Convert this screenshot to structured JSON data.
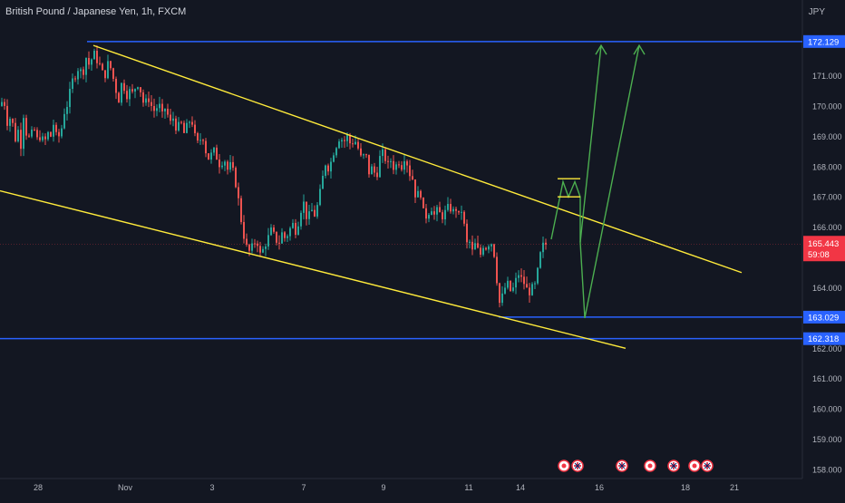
{
  "header": {
    "symbol_title": "British Pound / Japanese Yen, 1h, FXCM",
    "currency": "JPY"
  },
  "colors": {
    "background": "#131722",
    "up_candle": "#26a69a",
    "down_candle": "#ef5350",
    "horizontal_level": "#2962ff",
    "channel_line": "#ffeb3b",
    "projection_arrow": "#4caf50",
    "current_price_badge": "#f23645",
    "axis_text": "#b2b5be"
  },
  "icons": [
    "event-dot-icon",
    "uk-flag-icon"
  ],
  "chart_data": {
    "type": "candlestick",
    "y_axis": {
      "ylim": [
        157.7,
        173.5
      ],
      "tick_labels": [
        "158.000",
        "159.000",
        "160.000",
        "161.000",
        "162.000",
        "163.000",
        "164.000",
        "165.000",
        "166.000",
        "167.000",
        "168.000",
        "169.000",
        "170.000",
        "171.000"
      ]
    },
    "x_axis": {
      "tick_labels": [
        "28",
        "Nov",
        "3",
        "7",
        "9",
        "11",
        "14",
        "16",
        "18",
        "21"
      ]
    },
    "price_labels": [
      {
        "value": "172.129",
        "style": "level"
      },
      {
        "value": "163.029",
        "style": "level"
      },
      {
        "value": "162.318",
        "style": "level"
      },
      {
        "value": "165.443",
        "style": "current",
        "countdown": "59:08"
      }
    ],
    "horizontal_levels": [
      172.129,
      163.029,
      162.318
    ],
    "current_price": 165.443,
    "candle_path": [
      [
        0,
        170.0
      ],
      [
        3,
        170.4
      ],
      [
        6,
        169.4
      ],
      [
        10,
        169.6
      ],
      [
        12,
        169.2
      ],
      [
        14,
        169.6
      ],
      [
        16,
        168.9
      ],
      [
        20,
        169.3
      ],
      [
        22,
        168.7
      ],
      [
        25,
        169.7
      ],
      [
        28,
        169.1
      ],
      [
        32,
        168.9
      ],
      [
        36,
        169.3
      ],
      [
        40,
        168.9
      ],
      [
        44,
        169.0
      ],
      [
        48,
        168.8
      ],
      [
        52,
        169.1
      ],
      [
        55,
        169.0
      ],
      [
        58,
        169.4
      ],
      [
        62,
        168.9
      ],
      [
        66,
        169.1
      ],
      [
        70,
        169.8
      ],
      [
        74,
        170.1
      ],
      [
        78,
        170.8
      ],
      [
        82,
        171.0
      ],
      [
        86,
        171.3
      ],
      [
        90,
        171.0
      ],
      [
        94,
        171.6
      ],
      [
        98,
        171.3
      ],
      [
        102,
        171.8
      ],
      [
        106,
        171.5
      ],
      [
        110,
        171.3
      ],
      [
        114,
        170.9
      ],
      [
        118,
        171.4
      ],
      [
        122,
        171.2
      ],
      [
        126,
        170.6
      ],
      [
        130,
        170.2
      ],
      [
        134,
        170.9
      ],
      [
        138,
        170.3
      ],
      [
        142,
        170.5
      ],
      [
        146,
        170.4
      ],
      [
        150,
        170.8
      ],
      [
        154,
        170.5
      ],
      [
        158,
        170.0
      ],
      [
        162,
        170.3
      ],
      [
        166,
        170.0
      ],
      [
        170,
        169.8
      ],
      [
        174,
        170.1
      ],
      [
        178,
        169.7
      ],
      [
        182,
        170.0
      ],
      [
        186,
        169.4
      ],
      [
        190,
        169.6
      ],
      [
        194,
        169.2
      ],
      [
        198,
        169.5
      ],
      [
        202,
        169.1
      ],
      [
        206,
        169.4
      ],
      [
        210,
        169.6
      ],
      [
        214,
        169.0
      ],
      [
        218,
        168.7
      ],
      [
        222,
        169.1
      ],
      [
        226,
        168.5
      ],
      [
        230,
        168.2
      ],
      [
        234,
        168.6
      ],
      [
        238,
        168.3
      ],
      [
        242,
        168.0
      ],
      [
        246,
        168.3
      ],
      [
        250,
        167.9
      ],
      [
        254,
        168.1
      ],
      [
        258,
        167.6
      ],
      [
        262,
        166.9
      ],
      [
        266,
        166.0
      ],
      [
        270,
        165.4
      ],
      [
        274,
        165.2
      ],
      [
        278,
        165.4
      ],
      [
        282,
        165.6
      ],
      [
        286,
        165.1
      ],
      [
        290,
        165.3
      ],
      [
        294,
        165.6
      ],
      [
        298,
        165.9
      ],
      [
        302,
        165.7
      ],
      [
        306,
        165.4
      ],
      [
        310,
        165.8
      ],
      [
        314,
        165.6
      ],
      [
        318,
        165.9
      ],
      [
        322,
        166.1
      ],
      [
        326,
        165.8
      ],
      [
        330,
        166.5
      ],
      [
        334,
        166.8
      ],
      [
        338,
        166.2
      ],
      [
        342,
        166.6
      ],
      [
        346,
        166.4
      ],
      [
        350,
        166.8
      ],
      [
        354,
        167.5
      ],
      [
        358,
        168.1
      ],
      [
        362,
        167.9
      ],
      [
        366,
        168.4
      ],
      [
        370,
        168.7
      ],
      [
        374,
        169.0
      ],
      [
        378,
        168.8
      ],
      [
        382,
        169.0
      ],
      [
        386,
        168.7
      ],
      [
        390,
        168.9
      ],
      [
        394,
        168.6
      ],
      [
        398,
        168.2
      ],
      [
        402,
        168.5
      ],
      [
        406,
        167.8
      ],
      [
        410,
        168.0
      ],
      [
        414,
        167.6
      ],
      [
        418,
        168.3
      ],
      [
        422,
        168.5
      ],
      [
        426,
        168.0
      ],
      [
        430,
        168.2
      ],
      [
        434,
        167.9
      ],
      [
        438,
        168.2
      ],
      [
        442,
        168.0
      ],
      [
        446,
        168.4
      ],
      [
        450,
        167.8
      ],
      [
        454,
        167.6
      ],
      [
        458,
        166.9
      ],
      [
        462,
        167.3
      ],
      [
        466,
        166.5
      ],
      [
        470,
        166.3
      ],
      [
        474,
        166.7
      ],
      [
        478,
        166.4
      ],
      [
        482,
        166.6
      ],
      [
        486,
        166.3
      ],
      [
        490,
        166.5
      ],
      [
        494,
        166.7
      ],
      [
        498,
        166.5
      ],
      [
        502,
        166.6
      ],
      [
        506,
        166.3
      ],
      [
        510,
        166.8
      ],
      [
        512,
        165.3
      ],
      [
        516,
        165.6
      ],
      [
        520,
        165.2
      ],
      [
        524,
        165.5
      ],
      [
        528,
        165.0
      ],
      [
        532,
        165.4
      ],
      [
        536,
        165.3
      ],
      [
        540,
        165.6
      ],
      [
        544,
        165.1
      ],
      [
        546,
        164.5
      ],
      [
        550,
        163.5
      ],
      [
        554,
        163.8
      ],
      [
        558,
        164.2
      ],
      [
        562,
        163.9
      ],
      [
        566,
        164.0
      ],
      [
        570,
        164.5
      ],
      [
        574,
        164.3
      ],
      [
        578,
        164.1
      ],
      [
        582,
        163.8
      ],
      [
        586,
        164.0
      ],
      [
        590,
        164.1
      ],
      [
        594,
        165.0
      ],
      [
        598,
        165.4
      ],
      [
        602,
        165.443
      ]
    ],
    "trendlines": [
      {
        "name": "upper-channel",
        "x1": 103,
        "p1": 172.0,
        "x2": 818,
        "p2": 164.5
      },
      {
        "name": "lower-channel",
        "x1": 0,
        "p1": 167.2,
        "x2": 690,
        "p2": 162.0
      }
    ],
    "projection": {
      "zigzag": [
        [
          608,
          165.6
        ],
        [
          621,
          167.5
        ],
        [
          627,
          167.0
        ],
        [
          634,
          167.5
        ],
        [
          640,
          167.0
        ],
        [
          640,
          165.5
        ],
        [
          645,
          163.0
        ],
        [
          705,
          172.0
        ]
      ],
      "arrow_a": [
        [
          640,
          165.5
        ],
        [
          663,
          172.0
        ]
      ],
      "consolidation_lines": [
        [
          [
            615,
            167.6
          ],
          [
            640,
            167.6
          ]
        ],
        [
          [
            615,
            167.0
          ],
          [
            640,
            167.0
          ]
        ]
      ]
    }
  }
}
